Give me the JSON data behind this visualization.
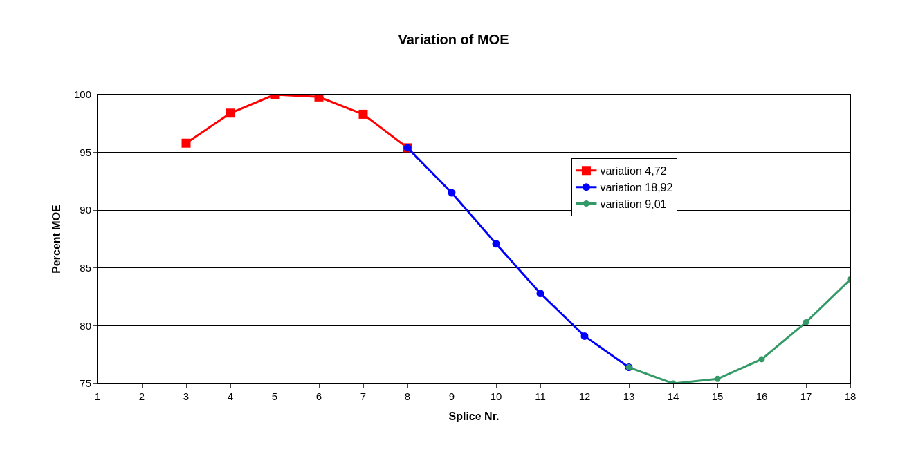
{
  "chart_data": {
    "type": "line",
    "title": "Variation of MOE",
    "xlabel": "Splice Nr.",
    "ylabel": "Percent MOE",
    "xlim": [
      1,
      18
    ],
    "xticks": [
      1,
      2,
      3,
      4,
      5,
      6,
      7,
      8,
      9,
      10,
      11,
      12,
      13,
      14,
      15,
      16,
      17,
      18
    ],
    "ylim": [
      75,
      100
    ],
    "yticks": [
      75,
      80,
      85,
      90,
      95,
      100
    ],
    "grid": "y",
    "legend": "right",
    "line_style": "solid",
    "series": [
      {
        "name": "variation 4,72",
        "color": "#ff0000",
        "marker": "square",
        "x": [
          3,
          4,
          5,
          6,
          7,
          8
        ],
        "values": [
          95.8,
          98.4,
          100.0,
          99.8,
          98.3,
          95.4
        ]
      },
      {
        "name": "variation 18,92",
        "color": "#0000ff",
        "marker": "circle",
        "x": [
          8,
          9,
          10,
          11,
          12,
          13
        ],
        "values": [
          95.4,
          91.5,
          87.1,
          82.8,
          79.1,
          76.4
        ]
      },
      {
        "name": "variation 9,01",
        "color": "#339966",
        "marker": "circle",
        "x": [
          13,
          14,
          15,
          16,
          17,
          18
        ],
        "values": [
          76.4,
          75.0,
          75.4,
          77.1,
          80.3,
          84.0
        ]
      }
    ]
  }
}
